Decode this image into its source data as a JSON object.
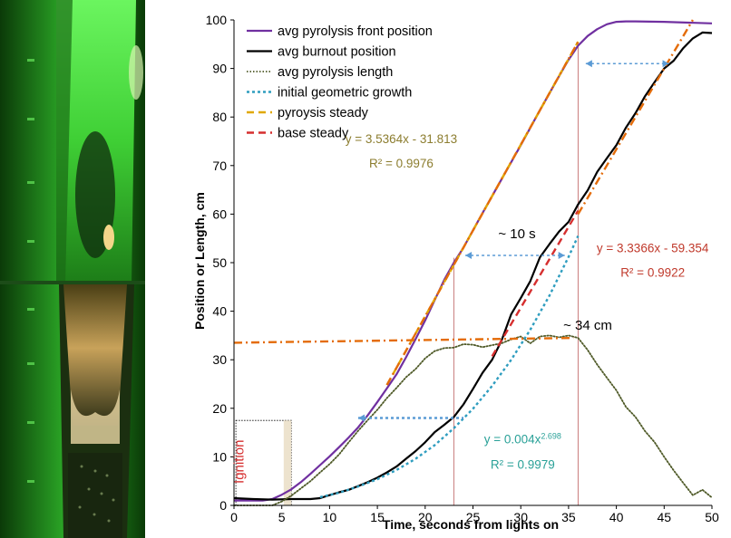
{
  "chart_data": {
    "type": "line",
    "xlabel": "Time, seconds from lights on",
    "ylabel": "Position or Length, cm",
    "xlim": [
      0,
      50
    ],
    "ylim": [
      0,
      100
    ],
    "xticks": [
      0,
      5,
      10,
      15,
      20,
      25,
      30,
      35,
      40,
      45,
      50
    ],
    "yticks": [
      0,
      10,
      20,
      30,
      40,
      50,
      60,
      70,
      80,
      90,
      100
    ],
    "grid": false,
    "legend_position": "top-left",
    "series": [
      {
        "name": "avg pyrolysis front position",
        "color": "#7030a0",
        "style": "solid",
        "x": [
          0,
          3,
          4,
          5,
          6,
          7,
          8,
          9,
          10,
          11,
          12,
          13,
          14,
          15,
          16,
          17,
          18,
          19,
          20,
          21,
          22,
          23,
          24,
          26,
          28,
          30,
          32,
          34,
          35,
          36,
          37,
          38,
          39,
          40,
          41,
          42,
          45,
          50
        ],
        "y": [
          1,
          1,
          1.3,
          2.2,
          3.3,
          4.8,
          6.5,
          8.3,
          10.1,
          12,
          14,
          16.1,
          18.6,
          21.3,
          24.1,
          27,
          30.5,
          34.3,
          38.1,
          42.3,
          46.5,
          50,
          53.1,
          60.2,
          67.2,
          74.2,
          81.4,
          88.4,
          91.8,
          94.7,
          96.7,
          98.1,
          99.1,
          99.6,
          99.7,
          99.7,
          99.6,
          99.3
        ]
      },
      {
        "name": "avg burnout position",
        "color": "#000000",
        "style": "solid",
        "x": [
          0,
          2,
          4,
          6,
          8,
          9,
          10,
          11,
          12,
          13,
          14,
          15,
          16,
          17,
          18,
          19,
          20,
          21,
          22,
          23,
          24,
          25,
          26,
          27,
          28,
          29,
          30,
          31,
          32,
          33,
          34,
          35,
          36,
          37,
          38,
          39,
          40,
          41,
          42,
          43,
          44,
          45,
          46,
          47,
          48,
          49,
          50
        ],
        "y": [
          1.5,
          1.3,
          1.2,
          1.3,
          1.3,
          1.5,
          2.1,
          2.7,
          3.2,
          4,
          4.8,
          5.7,
          6.8,
          8,
          9.6,
          11.2,
          13,
          15.1,
          16.6,
          18.2,
          20.8,
          24,
          27.3,
          30,
          34,
          39.4,
          42.7,
          46.2,
          51.1,
          53.8,
          56.4,
          58.4,
          62,
          64.9,
          68.7,
          71.5,
          74.2,
          77.8,
          80.8,
          84.3,
          87.2,
          90,
          91.6,
          94.2,
          96.2,
          97.4,
          97.3
        ]
      },
      {
        "name": "avg pyrolysis length",
        "color": "#4f5a28",
        "style": "dotted",
        "x": [
          0,
          4,
          5,
          6,
          7,
          8,
          9,
          10,
          11,
          12,
          13,
          14,
          15,
          16,
          17,
          18,
          19,
          20,
          21,
          22,
          23,
          24,
          25,
          26,
          27,
          28,
          29,
          30,
          31,
          32,
          33,
          34,
          35,
          36,
          37,
          38,
          39,
          40,
          41,
          42,
          43,
          44,
          45,
          46,
          47,
          48,
          49,
          50
        ],
        "y": [
          0,
          0,
          0.8,
          2,
          3.5,
          5,
          6.8,
          8.5,
          10.5,
          13,
          15.4,
          17.6,
          19.7,
          22.1,
          24.2,
          26.4,
          28.1,
          30.3,
          31.8,
          32.4,
          32.5,
          33.2,
          33.1,
          32.6,
          33,
          33.4,
          34.2,
          34.8,
          33.4,
          34.8,
          35,
          34.6,
          35,
          34.5,
          32,
          29,
          26.3,
          23.7,
          20.3,
          18.2,
          15.3,
          13,
          10,
          7.2,
          4.6,
          2.1,
          3.2,
          1.6
        ]
      },
      {
        "name": "initial geometric growth",
        "color": "#2e9dbf",
        "style": "short-dash",
        "x": [
          9,
          11,
          13,
          15,
          17,
          19,
          21,
          23,
          25,
          27,
          29,
          31,
          33,
          35,
          36
        ],
        "y": [
          1.7,
          2.6,
          3.9,
          5.4,
          7.3,
          9.6,
          12.4,
          15.9,
          19.9,
          24.6,
          30,
          36.2,
          43.2,
          51.2,
          55.5
        ]
      },
      {
        "name": "pyroysis steady",
        "color": "#e0a800",
        "style": "dash",
        "x": [
          16,
          36
        ],
        "y": [
          24.8,
          95.5
        ]
      },
      {
        "name": "base steady",
        "color": "#d62f2f",
        "style": "dash",
        "x": [
          27,
          36
        ],
        "y": [
          30.7,
          60.7
        ]
      },
      {
        "name": "",
        "color": "#e46c0a",
        "style": "dash-dot",
        "x": [
          16,
          36
        ],
        "y": [
          24.8,
          95.5
        ]
      },
      {
        "name": "",
        "color": "#e46c0a",
        "style": "dash-dot",
        "x": [
          36,
          48
        ],
        "y": [
          60,
          100
        ]
      },
      {
        "name": "",
        "color": "#e46c0a",
        "style": "dash-dot",
        "x": [
          0,
          35.5
        ],
        "y": [
          33.5,
          34.5
        ]
      },
      {
        "name": "",
        "color": "#5b9bd5",
        "style": "short-dash",
        "x": [
          13,
          24
        ],
        "y": [
          18,
          18
        ]
      }
    ],
    "annotations": [
      {
        "text": "y = 3.5364x - 31.813",
        "x": 17.5,
        "y": 74.6,
        "color": "#8c7d2f"
      },
      {
        "text": "R² = 0.9976",
        "x": 17.5,
        "y": 69.6,
        "color": "#8c7d2f"
      },
      {
        "text": "~ 10 s",
        "x": 29.6,
        "y": 55,
        "color": "#000000"
      },
      {
        "text": "y = 3.3366x - 59.354",
        "x": 43.8,
        "y": 52.1,
        "color": "#c0392b"
      },
      {
        "text": "R² = 0.9922",
        "x": 43.8,
        "y": 47.1,
        "color": "#c0392b"
      },
      {
        "text": "~ 34 cm",
        "x": 37,
        "y": 36.2,
        "color": "#000000"
      },
      {
        "text": "y = 0.004x",
        "sup": "2.698",
        "x": 30.2,
        "y": 12.8,
        "color": "#2aa198"
      },
      {
        "text": "R² = 0.9979",
        "x": 30.2,
        "y": 7.6,
        "color": "#2aa198"
      },
      {
        "text": "Ignition",
        "x": 1,
        "y": 9,
        "color": "#d62f2f",
        "rotate": -90
      }
    ],
    "reference_lines": [
      {
        "x": 23,
        "y": 51,
        "color": "#c97b7b"
      },
      {
        "x": 36,
        "y": 95,
        "color": "#c97b7b"
      }
    ],
    "arrows": [
      {
        "x1": 24.2,
        "y1": 51.5,
        "x2": 34.6,
        "y2": 51.5,
        "color": "#5b9bd5"
      },
      {
        "x1": 36.8,
        "y1": 91,
        "x2": 45.5,
        "y2": 91,
        "color": "#5b9bd5"
      }
    ]
  }
}
